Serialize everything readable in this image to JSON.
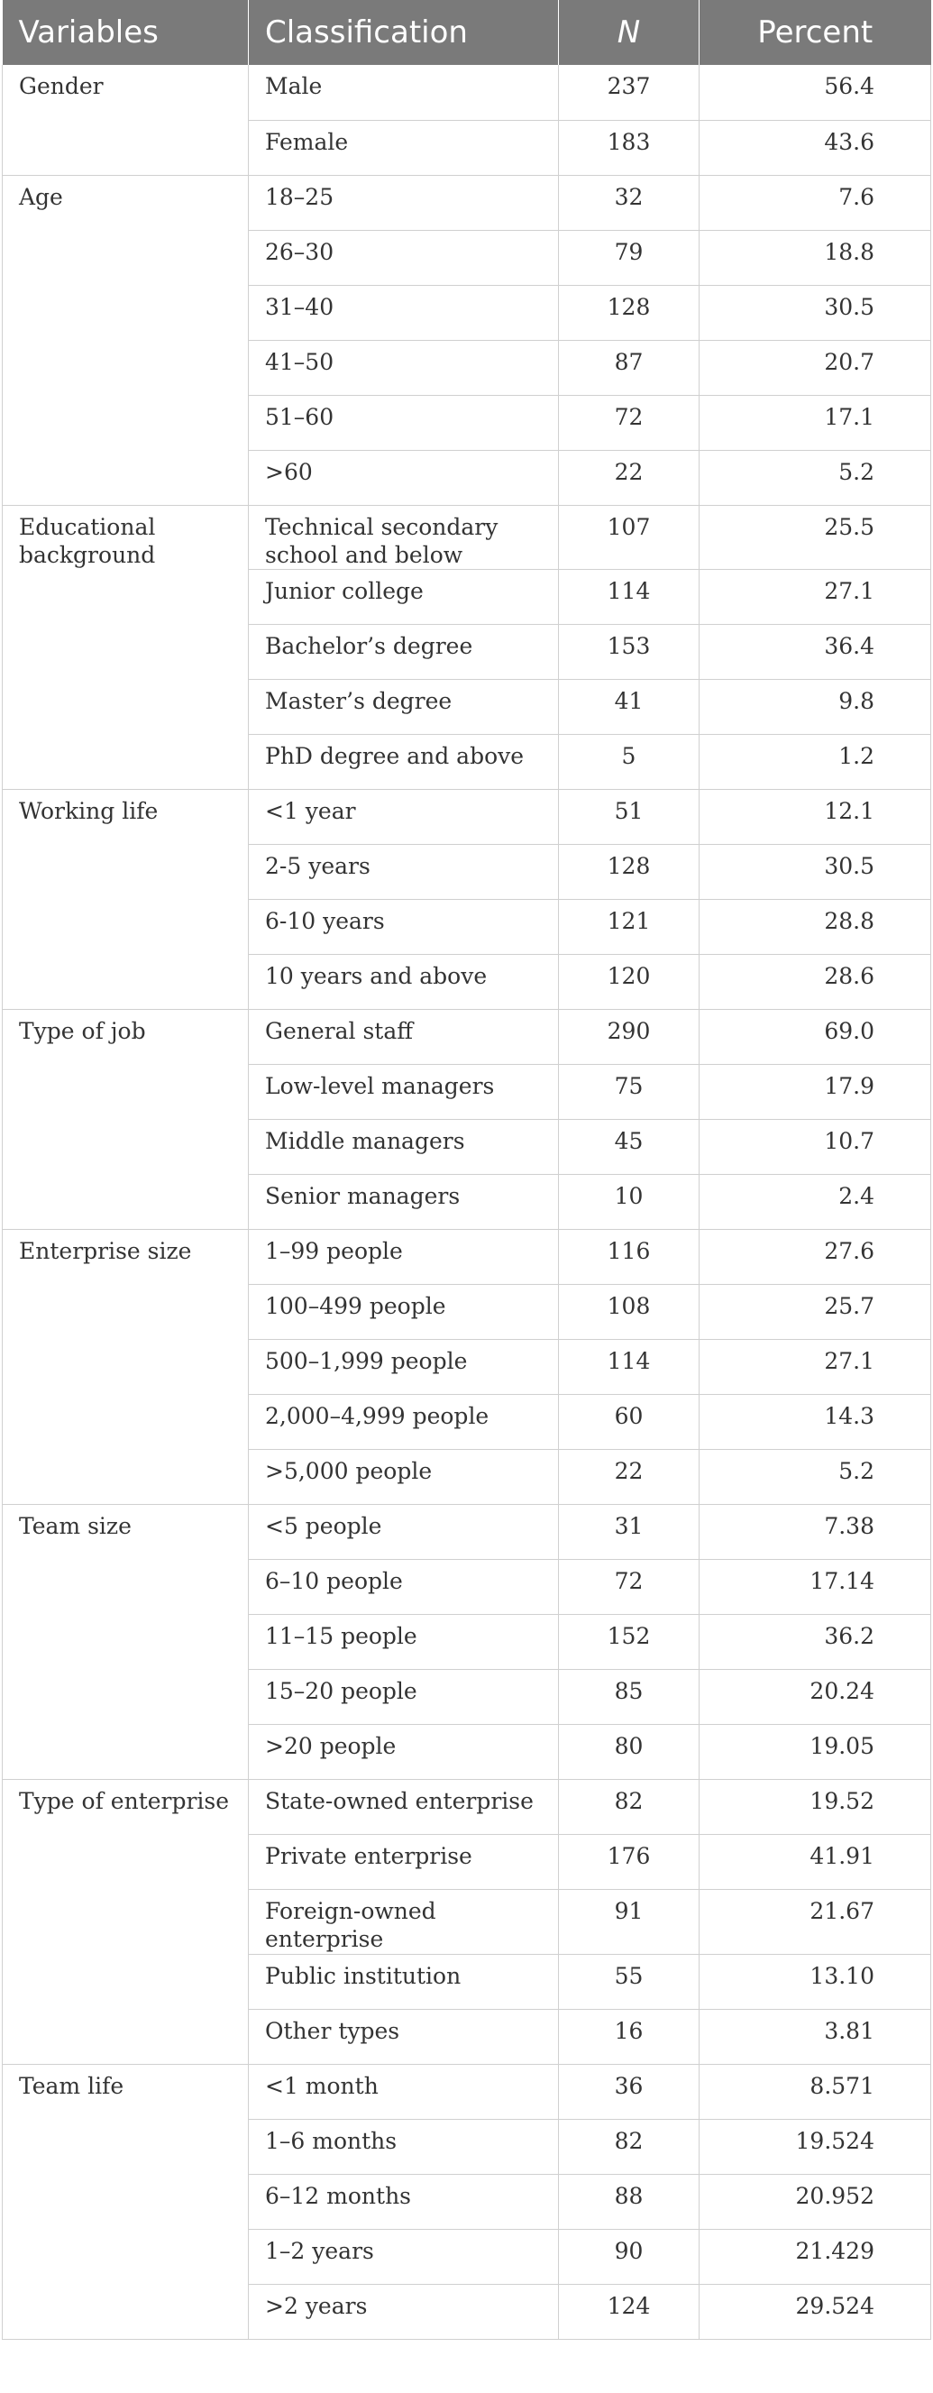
{
  "headers": [
    "Variables",
    "Classification",
    "N",
    "Percent"
  ],
  "groups": [
    {
      "variable": "Gender",
      "rows": [
        {
          "classification": "Male",
          "n": "237",
          "percent": "56.4"
        },
        {
          "classification": "Female",
          "n": "183",
          "percent": "43.6"
        }
      ]
    },
    {
      "variable": "Age",
      "rows": [
        {
          "classification": "18–25",
          "n": "32",
          "percent": "7.6"
        },
        {
          "classification": "26–30",
          "n": "79",
          "percent": "18.8"
        },
        {
          "classification": "31–40",
          "n": "128",
          "percent": "30.5"
        },
        {
          "classification": "41–50",
          "n": "87",
          "percent": "20.7"
        },
        {
          "classification": "51–60",
          "n": "72",
          "percent": "17.1"
        },
        {
          "classification": ">60",
          "n": "22",
          "percent": "5.2"
        }
      ]
    },
    {
      "variable": "Educational background",
      "rows": [
        {
          "classification": "Technical secondary school and below",
          "n": "107",
          "percent": "25.5"
        },
        {
          "classification": "Junior college",
          "n": "114",
          "percent": "27.1"
        },
        {
          "classification": "Bachelor’s degree",
          "n": "153",
          "percent": "36.4"
        },
        {
          "classification": "Master’s degree",
          "n": "41",
          "percent": "9.8"
        },
        {
          "classification": "PhD degree and above",
          "n": "5",
          "percent": "1.2"
        }
      ]
    },
    {
      "variable": "Working life",
      "rows": [
        {
          "classification": "<1 year",
          "n": "51",
          "percent": "12.1"
        },
        {
          "classification": "2-5 years",
          "n": "128",
          "percent": "30.5"
        },
        {
          "classification": "6-10 years",
          "n": "121",
          "percent": "28.8"
        },
        {
          "classification": "10 years and above",
          "n": "120",
          "percent": "28.6"
        }
      ]
    },
    {
      "variable": "Type of job",
      "rows": [
        {
          "classification": "General staff",
          "n": "290",
          "percent": "69.0"
        },
        {
          "classification": "Low-level managers",
          "n": "75",
          "percent": "17.9"
        },
        {
          "classification": "Middle managers",
          "n": "45",
          "percent": "10.7"
        },
        {
          "classification": "Senior managers",
          "n": "10",
          "percent": "2.4"
        }
      ]
    },
    {
      "variable": "Enterprise size",
      "rows": [
        {
          "classification": "1–99 people",
          "n": "116",
          "percent": "27.6"
        },
        {
          "classification": "100–499 people",
          "n": "108",
          "percent": "25.7"
        },
        {
          "classification": "500–1,999 people",
          "n": "114",
          "percent": "27.1"
        },
        {
          "classification": "2,000–4,999 people",
          "n": "60",
          "percent": "14.3"
        },
        {
          "classification": ">5,000 people",
          "n": "22",
          "percent": "5.2"
        }
      ]
    },
    {
      "variable": "Team size",
      "rows": [
        {
          "classification": "<5 people",
          "n": "31",
          "percent": "7.38"
        },
        {
          "classification": "6–10 people",
          "n": "72",
          "percent": "17.14"
        },
        {
          "classification": "11–15 people",
          "n": "152",
          "percent": "36.2"
        },
        {
          "classification": "15–20 people",
          "n": "85",
          "percent": "20.24"
        },
        {
          "classification": ">20 people",
          "n": "80",
          "percent": "19.05"
        }
      ]
    },
    {
      "variable": "Type of enterprise",
      "rows": [
        {
          "classification": "State-owned enterprise",
          "n": "82",
          "percent": "19.52"
        },
        {
          "classification": "Private enterprise",
          "n": "176",
          "percent": "41.91"
        },
        {
          "classification": "Foreign-owned enterprise",
          "n": "91",
          "percent": "21.67"
        },
        {
          "classification": "Public institution",
          "n": "55",
          "percent": "13.10"
        },
        {
          "classification": "Other types",
          "n": "16",
          "percent": "3.81"
        }
      ]
    },
    {
      "variable": "Team life",
      "rows": [
        {
          "classification": "<1 month",
          "n": "36",
          "percent": "8.571"
        },
        {
          "classification": "1–6 months",
          "n": "82",
          "percent": "19.524"
        },
        {
          "classification": "6–12 months",
          "n": "88",
          "percent": "20.952"
        },
        {
          "classification": "1–2 years",
          "n": "90",
          "percent": "21.429"
        },
        {
          "classification": ">2 years",
          "n": "124",
          "percent": "29.524"
        }
      ]
    }
  ]
}
